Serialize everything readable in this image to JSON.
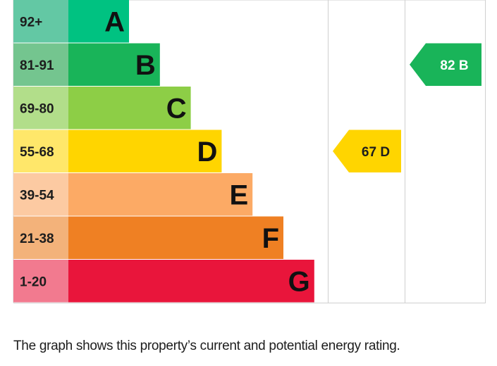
{
  "chart_data": {
    "type": "bar",
    "bands": [
      {
        "range": "92+",
        "letter": "A",
        "bar_color": "#00c281",
        "range_color": "#63c8a4"
      },
      {
        "range": "81-91",
        "letter": "B",
        "bar_color": "#19b459",
        "range_color": "#74c58f"
      },
      {
        "range": "69-80",
        "letter": "C",
        "bar_color": "#8dce46",
        "range_color": "#b2de8a"
      },
      {
        "range": "55-68",
        "letter": "D",
        "bar_color": "#ffd500",
        "range_color": "#ffe76a"
      },
      {
        "range": "39-54",
        "letter": "E",
        "bar_color": "#fcaa65",
        "range_color": "#fccaa2"
      },
      {
        "range": "21-38",
        "letter": "F",
        "bar_color": "#ef8023",
        "range_color": "#f3b27a"
      },
      {
        "range": "1-20",
        "letter": "G",
        "bar_color": "#e9153b",
        "range_color": "#f27a8f"
      }
    ],
    "ratings": [
      {
        "column": "current",
        "value": 67,
        "band": "D",
        "label": "67 D",
        "color": "#ffd500",
        "text_color": "#1d1d1d"
      },
      {
        "column": "potential",
        "value": 82,
        "band": "B",
        "label": "82 B",
        "color": "#19b459",
        "text_color": "#ffffff"
      }
    ]
  },
  "caption": "The graph shows this property’s current and potential energy rating."
}
